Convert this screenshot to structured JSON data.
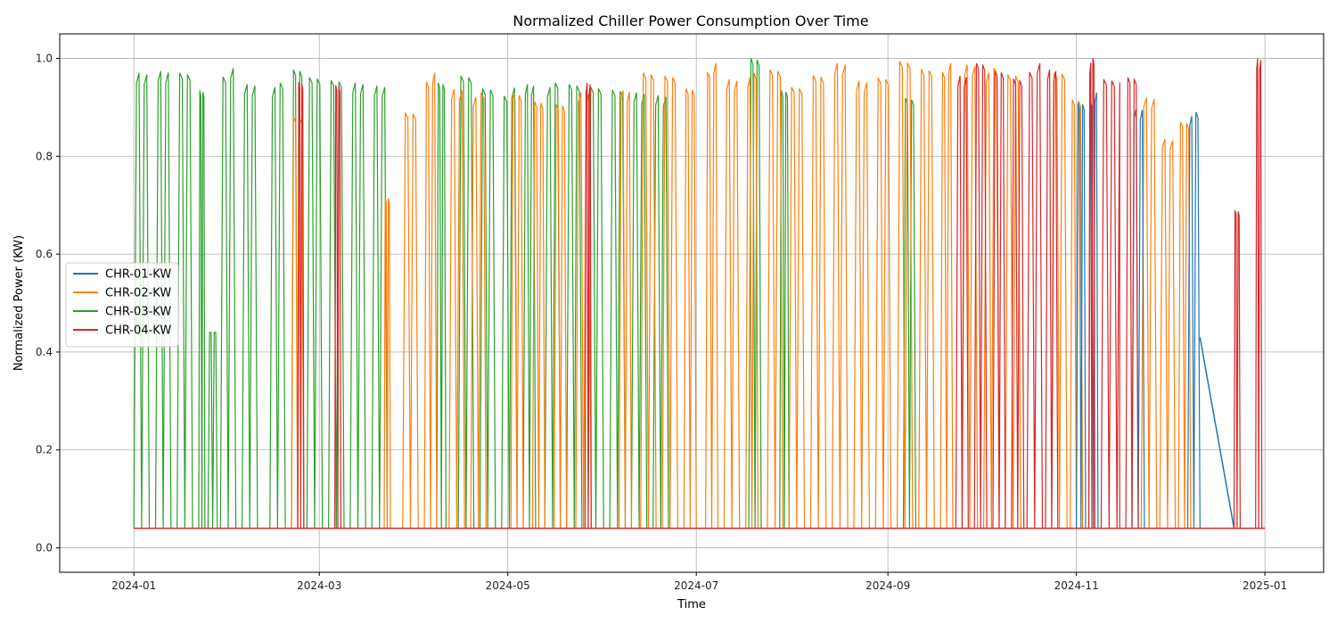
{
  "chart_data": {
    "type": "line",
    "title": "Normalized Chiller Power Consumption Over Time",
    "xlabel": "Time",
    "ylabel": "Normalized Power (KW)",
    "xlim": [
      "2023-12-08",
      "2025-01-20"
    ],
    "ylim": [
      -0.05,
      1.05
    ],
    "x_ticks": [
      "2024-01",
      "2024-03",
      "2024-05",
      "2024-07",
      "2024-09",
      "2024-11",
      "2025-01"
    ],
    "y_ticks": [
      0.0,
      0.2,
      0.4,
      0.6,
      0.8,
      1.0
    ],
    "y_tick_labels": [
      "0.0",
      "0.2",
      "0.4",
      "0.6",
      "0.8",
      "1.0"
    ],
    "grid": true,
    "legend_position": "center-left",
    "baseline_value": 0.04,
    "series": [
      {
        "name": "CHR-01-KW",
        "color": "#1f77b4",
        "active_periods": [
          {
            "start": "2024-11-01",
            "end": "2024-11-04",
            "peak": 0.92
          },
          {
            "start": "2024-11-05",
            "end": "2024-11-08",
            "peak": 0.93
          },
          {
            "start": "2024-11-19",
            "end": "2024-11-23",
            "peak": 0.9
          },
          {
            "start": "2024-12-07",
            "end": "2024-12-11",
            "peak": 0.89
          }
        ],
        "end_segment": [
          {
            "x": "2024-12-11",
            "y": 0.43
          },
          {
            "x": "2024-12-22",
            "y": 0.04
          }
        ]
      },
      {
        "name": "CHR-02-KW",
        "color": "#ff7f0e",
        "active_periods": [
          {
            "start": "2024-02-21",
            "end": "2024-02-25",
            "peak": 0.88
          },
          {
            "start": "2024-03-22",
            "end": "2024-03-24",
            "peak": 0.72
          },
          {
            "start": "2024-03-28",
            "end": "2024-04-02",
            "peak": 0.9
          },
          {
            "start": "2024-04-04",
            "end": "2024-04-08",
            "peak": 0.97
          },
          {
            "start": "2024-04-12",
            "end": "2024-04-17",
            "peak": 0.94
          },
          {
            "start": "2024-04-19",
            "end": "2024-04-24",
            "peak": 0.93
          },
          {
            "start": "2024-05-02",
            "end": "2024-05-06",
            "peak": 0.93
          },
          {
            "start": "2024-05-09",
            "end": "2024-05-13",
            "peak": 0.92
          },
          {
            "start": "2024-05-16",
            "end": "2024-05-20",
            "peak": 0.92
          },
          {
            "start": "2024-05-23",
            "end": "2024-05-28",
            "peak": 0.93
          },
          {
            "start": "2024-06-06",
            "end": "2024-06-10",
            "peak": 0.94
          },
          {
            "start": "2024-06-13",
            "end": "2024-06-18",
            "peak": 0.97
          },
          {
            "start": "2024-06-20",
            "end": "2024-06-25",
            "peak": 0.97
          },
          {
            "start": "2024-06-27",
            "end": "2024-07-01",
            "peak": 0.95
          },
          {
            "start": "2024-07-04",
            "end": "2024-07-08",
            "peak": 0.99
          },
          {
            "start": "2024-07-10",
            "end": "2024-07-15",
            "peak": 0.96
          },
          {
            "start": "2024-07-17",
            "end": "2024-07-21",
            "peak": 0.97
          },
          {
            "start": "2024-07-24",
            "end": "2024-07-29",
            "peak": 0.98
          },
          {
            "start": "2024-07-31",
            "end": "2024-08-05",
            "peak": 0.95
          },
          {
            "start": "2024-08-07",
            "end": "2024-08-12",
            "peak": 0.98
          },
          {
            "start": "2024-08-14",
            "end": "2024-08-19",
            "peak": 0.99
          },
          {
            "start": "2024-08-21",
            "end": "2024-08-26",
            "peak": 0.96
          },
          {
            "start": "2024-08-28",
            "end": "2024-09-02",
            "peak": 0.96
          },
          {
            "start": "2024-09-04",
            "end": "2024-09-09",
            "peak": 1.0
          },
          {
            "start": "2024-09-11",
            "end": "2024-09-16",
            "peak": 0.99
          },
          {
            "start": "2024-09-18",
            "end": "2024-09-22",
            "peak": 0.99
          },
          {
            "start": "2024-09-25",
            "end": "2024-09-30",
            "peak": 0.99
          },
          {
            "start": "2024-10-02",
            "end": "2024-10-07",
            "peak": 0.98
          },
          {
            "start": "2024-10-09",
            "end": "2024-10-14",
            "peak": 0.97
          },
          {
            "start": "2024-10-24",
            "end": "2024-10-29",
            "peak": 0.98
          },
          {
            "start": "2024-10-30",
            "end": "2024-11-03",
            "peak": 0.93
          },
          {
            "start": "2024-11-22",
            "end": "2024-11-27",
            "peak": 0.92
          },
          {
            "start": "2024-11-28",
            "end": "2024-12-03",
            "peak": 0.84
          },
          {
            "start": "2024-12-04",
            "end": "2024-12-08",
            "peak": 0.87
          }
        ]
      },
      {
        "name": "CHR-03-KW",
        "color": "#2ca02c",
        "active_periods": [
          {
            "start": "2024-01-01",
            "end": "2024-01-06",
            "peak": 0.97
          },
          {
            "start": "2024-01-08",
            "end": "2024-01-13",
            "peak": 0.98
          },
          {
            "start": "2024-01-15",
            "end": "2024-01-20",
            "peak": 0.97
          },
          {
            "start": "2024-01-22",
            "end": "2024-01-24",
            "peak": 0.94
          },
          {
            "start": "2024-01-25",
            "end": "2024-01-28",
            "peak": 0.44
          },
          {
            "start": "2024-01-29",
            "end": "2024-02-03",
            "peak": 0.98
          },
          {
            "start": "2024-02-05",
            "end": "2024-02-10",
            "peak": 0.95
          },
          {
            "start": "2024-02-14",
            "end": "2024-02-19",
            "peak": 0.95
          },
          {
            "start": "2024-02-21",
            "end": "2024-02-25",
            "peak": 0.98
          },
          {
            "start": "2024-02-26",
            "end": "2024-03-02",
            "peak": 0.97
          },
          {
            "start": "2024-03-04",
            "end": "2024-03-09",
            "peak": 0.97
          },
          {
            "start": "2024-03-11",
            "end": "2024-03-16",
            "peak": 0.95
          },
          {
            "start": "2024-03-18",
            "end": "2024-03-23",
            "peak": 0.95
          },
          {
            "start": "2024-04-08",
            "end": "2024-04-11",
            "peak": 0.95
          },
          {
            "start": "2024-04-15",
            "end": "2024-04-20",
            "peak": 0.97
          },
          {
            "start": "2024-04-22",
            "end": "2024-04-27",
            "peak": 0.95
          },
          {
            "start": "2024-04-29",
            "end": "2024-05-04",
            "peak": 0.94
          },
          {
            "start": "2024-05-06",
            "end": "2024-05-10",
            "peak": 0.95
          },
          {
            "start": "2024-05-13",
            "end": "2024-05-18",
            "peak": 0.95
          },
          {
            "start": "2024-05-20",
            "end": "2024-05-25",
            "peak": 0.95
          },
          {
            "start": "2024-05-27",
            "end": "2024-06-01",
            "peak": 0.95
          },
          {
            "start": "2024-06-03",
            "end": "2024-06-08",
            "peak": 0.95
          },
          {
            "start": "2024-06-10",
            "end": "2024-06-15",
            "peak": 0.93
          },
          {
            "start": "2024-06-17",
            "end": "2024-06-22",
            "peak": 0.93
          },
          {
            "start": "2024-07-18",
            "end": "2024-07-22",
            "peak": 1.0
          },
          {
            "start": "2024-07-28",
            "end": "2024-07-31",
            "peak": 0.94
          },
          {
            "start": "2024-09-06",
            "end": "2024-09-10",
            "peak": 0.93
          }
        ]
      },
      {
        "name": "CHR-04-KW",
        "color": "#d62728",
        "active_periods": [
          {
            "start": "2024-02-23",
            "end": "2024-02-25",
            "peak": 0.96
          },
          {
            "start": "2024-03-06",
            "end": "2024-03-08",
            "peak": 0.96
          },
          {
            "start": "2024-05-26",
            "end": "2024-05-28",
            "peak": 0.95
          },
          {
            "start": "2024-09-23",
            "end": "2024-09-27",
            "peak": 0.97
          },
          {
            "start": "2024-09-29",
            "end": "2024-10-03",
            "peak": 0.99
          },
          {
            "start": "2024-10-05",
            "end": "2024-10-09",
            "peak": 0.98
          },
          {
            "start": "2024-10-11",
            "end": "2024-10-15",
            "peak": 0.97
          },
          {
            "start": "2024-10-16",
            "end": "2024-10-21",
            "peak": 0.99
          },
          {
            "start": "2024-10-22",
            "end": "2024-10-26",
            "peak": 0.98
          },
          {
            "start": "2024-11-05",
            "end": "2024-11-07",
            "peak": 1.0
          },
          {
            "start": "2024-11-09",
            "end": "2024-11-15",
            "peak": 0.96
          },
          {
            "start": "2024-11-17",
            "end": "2024-11-21",
            "peak": 0.97
          },
          {
            "start": "2024-12-22",
            "end": "2024-12-24",
            "peak": 0.7
          },
          {
            "start": "2024-12-29",
            "end": "2024-12-31",
            "peak": 1.0
          }
        ]
      }
    ]
  }
}
